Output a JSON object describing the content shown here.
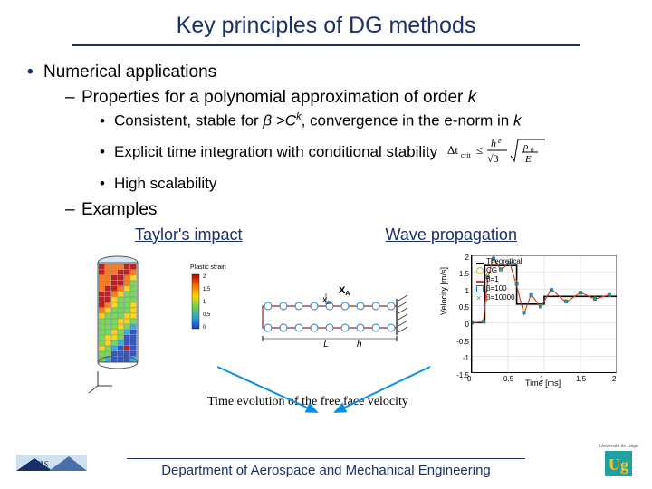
{
  "title": "Key principles of DG methods",
  "bullets": {
    "l1": "Numerical applications",
    "l2a": "Properties for a polynomial approximation of order",
    "l2a_var": "k",
    "l3a_pre": "Consistent, stable for ",
    "l3a_beta": "β",
    "l3a_mid": " >C",
    "l3a_sup": "k",
    "l3a_post": ", convergence in the e-norm in ",
    "l3a_end": "k",
    "l3b": "Explicit time integration with conditional stability",
    "l3c": "High scalability",
    "l2b": "Examples",
    "ex1": "Taylor's impact",
    "ex2": "Wave propagation"
  },
  "formula": {
    "lhs": "Δt",
    "lhs_sub": "crit",
    "leq": "≤",
    "num": "h",
    "num_sup": "e",
    "den": "√3",
    "sqrt_num": "ρ",
    "sqrt_num_sub": "0",
    "sqrt_den": "E"
  },
  "taylor": {
    "colorbar_title": "Plastic strain",
    "colorbar_ticks": [
      "2",
      "1.5",
      "1",
      "0.5",
      "0"
    ],
    "mesh_colors": [
      "#b80000",
      "#ff6a00",
      "#ffd400",
      "#6bd44a",
      "#2aa0d8",
      "#1a3fbc"
    ],
    "cyl_outline": "#555555"
  },
  "bar": {
    "label_L": "L",
    "label_xa": "x",
    "label_xa_sub": "a",
    "label_h": "h",
    "label_XA": "X",
    "label_XA_sub": "A",
    "fill": "#ffffff",
    "stroke": "#9a1f1f",
    "node_stroke": "#2a7fb8"
  },
  "chart": {
    "type": "line",
    "xlabel": "Time [ms]",
    "ylabel": "Velocity [m/s]",
    "xlim": [
      0,
      2
    ],
    "ylim": [
      -1.5,
      2
    ],
    "xticks": [
      0,
      0.5,
      1,
      1.5,
      2
    ],
    "yticks": [
      -1.5,
      -1,
      -0.5,
      0,
      0.5,
      1,
      1.5,
      2
    ],
    "grid_color": "#cfcfcf",
    "legend": [
      {
        "label": "Theoretical",
        "color": "#000000",
        "style": "line"
      },
      {
        "label": "CG",
        "color": "#d8b62a",
        "style": "marker-o"
      },
      {
        "label": "β=1",
        "color": "#d23a2a",
        "style": "line"
      },
      {
        "label": "β=100",
        "color": "#2a62d2",
        "style": "marker-sq"
      },
      {
        "label": "β=10000",
        "color": "#2aa84a",
        "style": "marker-x"
      }
    ],
    "series": {
      "theoretical": {
        "color": "#000000",
        "x": [
          0,
          0.18,
          0.18,
          0.62,
          0.62,
          1.0,
          1.0,
          2.0
        ],
        "y": [
          0,
          0,
          1.7,
          1.7,
          0.55,
          0.55,
          0.78,
          0.78
        ]
      },
      "cg": {
        "color": "#d8b62a",
        "x": [
          0,
          0.16,
          0.22,
          0.3,
          0.4,
          0.52,
          0.62,
          0.72,
          0.82,
          0.95,
          1.1,
          1.3,
          1.5,
          1.7,
          1.9
        ],
        "y": [
          0,
          0.05,
          1.4,
          1.85,
          1.6,
          1.75,
          1.2,
          0.35,
          0.8,
          0.5,
          0.95,
          0.65,
          0.88,
          0.72,
          0.82
        ]
      },
      "b1": {
        "color": "#d23a2a",
        "x": [
          0,
          0.16,
          0.22,
          0.3,
          0.4,
          0.52,
          0.62,
          0.72,
          0.82,
          0.95,
          1.1,
          1.3,
          1.5,
          1.7,
          1.9
        ],
        "y": [
          0,
          0.02,
          1.3,
          1.95,
          1.55,
          1.8,
          1.1,
          0.25,
          0.85,
          0.45,
          1.0,
          0.6,
          0.9,
          0.7,
          0.83
        ]
      },
      "b100": {
        "color": "#2a62d2",
        "x": [
          0,
          0.16,
          0.22,
          0.3,
          0.4,
          0.52,
          0.62,
          0.72,
          0.82,
          0.95,
          1.1,
          1.3,
          1.5,
          1.7,
          1.9
        ],
        "y": [
          0,
          0.03,
          1.35,
          1.9,
          1.58,
          1.77,
          1.15,
          0.3,
          0.82,
          0.48,
          0.97,
          0.63,
          0.89,
          0.71,
          0.82
        ]
      },
      "b10000": {
        "color": "#2aa84a",
        "x": [
          0,
          0.16,
          0.22,
          0.3,
          0.4,
          0.52,
          0.62,
          0.72,
          0.82,
          0.95,
          1.1,
          1.3,
          1.5,
          1.7,
          1.9
        ],
        "y": [
          0,
          0.04,
          1.38,
          1.88,
          1.6,
          1.76,
          1.17,
          0.32,
          0.8,
          0.5,
          0.96,
          0.64,
          0.88,
          0.72,
          0.82
        ]
      }
    }
  },
  "caption": "Time evolution of the free face velocity",
  "footer": "Department of Aerospace and Mechanical Engineering",
  "logos": {
    "left_bg": "#cfe0ef",
    "left_accent": "#1a2f6b",
    "right_bg": "#20a0a0",
    "right_fg": "#f4c430",
    "right_text": "Université de Liège"
  },
  "colors": {
    "brand": "#1a2f6b",
    "arrow": "#0a8fe6"
  }
}
